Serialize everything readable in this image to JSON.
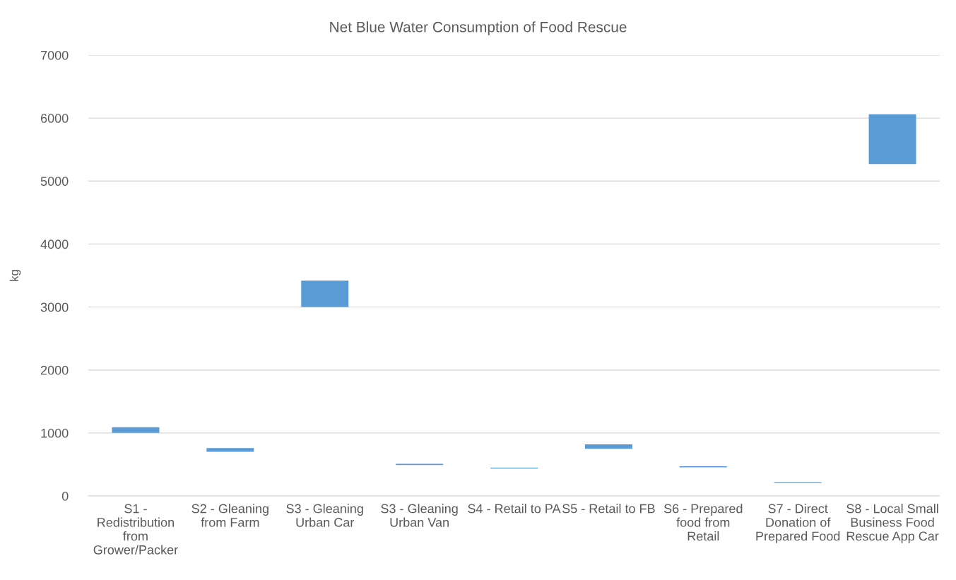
{
  "chart_data": {
    "type": "bar",
    "title": "Net Blue Water Consumption of Food Rescue",
    "ylabel": "kg",
    "categories": [
      "S1 -\nRedistribution\nfrom\nGrower/Packer",
      "S2 - Gleaning\nfrom Farm",
      "S3 - Gleaning\nUrban Car",
      "S3 - Gleaning\nUrban Van",
      "S4 - Retail to PA",
      "S5 - Retail to FB",
      "S6 - Prepared\nfood from\nRetail",
      "S7 - Direct\nDonation of\nPrepared Food",
      "S8 - Local Small\nBusiness Food\nRescue App Car"
    ],
    "base": [
      1000,
      700,
      3000,
      490,
      435,
      750,
      455,
      205,
      5270
    ],
    "values": [
      90,
      60,
      420,
      20,
      15,
      70,
      15,
      15,
      790
    ],
    "color": "#5b9bd5",
    "ylim": [
      0,
      7000
    ],
    "yticks": [
      0,
      1000,
      2000,
      3000,
      4000,
      5000,
      6000,
      7000
    ],
    "grid": "y"
  }
}
